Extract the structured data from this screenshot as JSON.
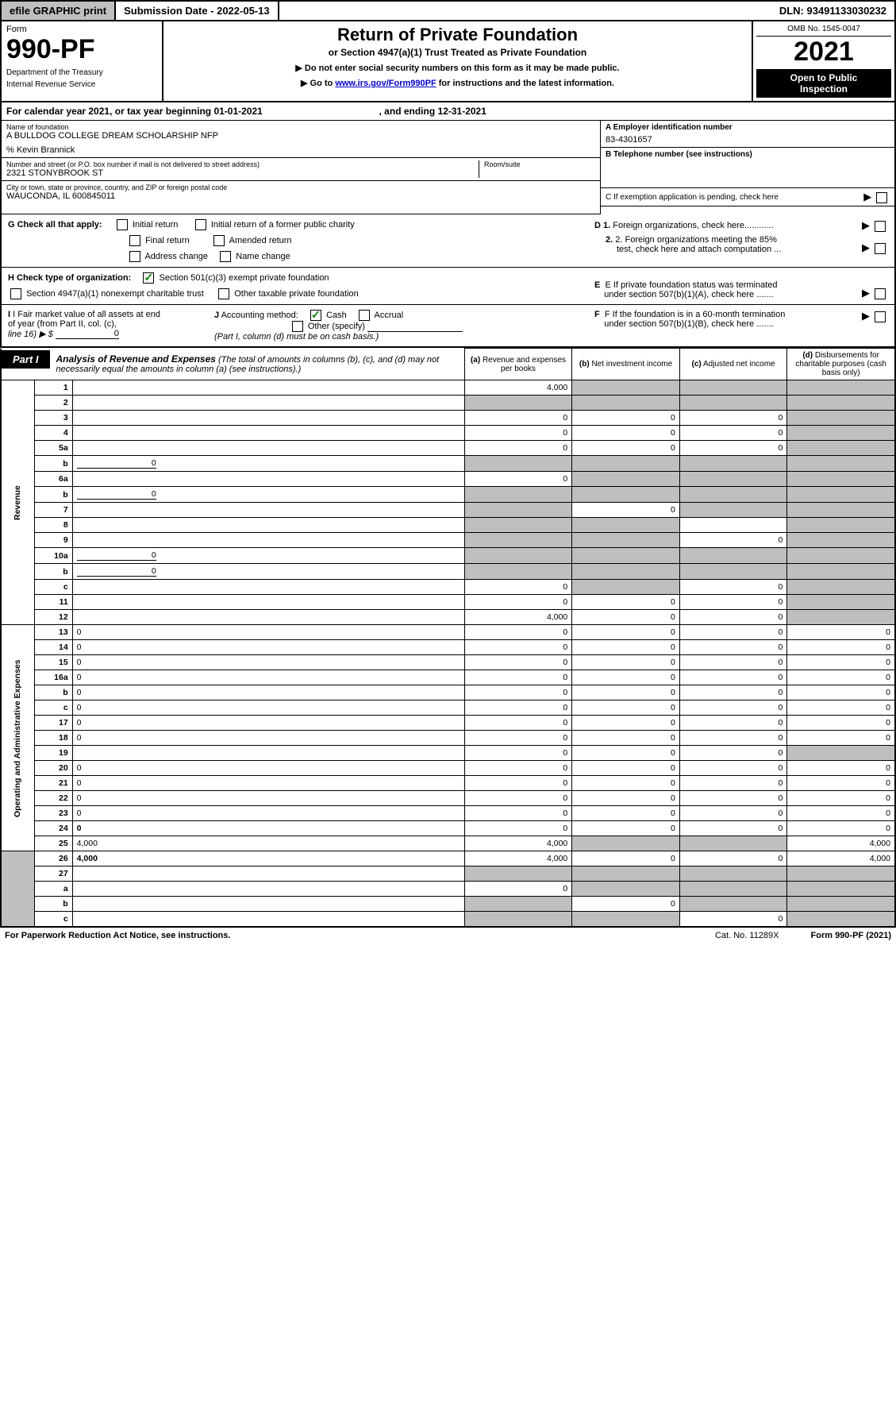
{
  "topbar": {
    "efile": "efile GRAPHIC print",
    "submission_label": "Submission Date - 2022-05-13",
    "dln": "DLN: 93491133030232"
  },
  "header": {
    "form_word": "Form",
    "form_num": "990-PF",
    "dept1": "Department of the Treasury",
    "dept2": "Internal Revenue Service",
    "title": "Return of Private Foundation",
    "subtitle": "or Section 4947(a)(1) Trust Treated as Private Foundation",
    "note1": "▶ Do not enter social security numbers on this form as it may be made public.",
    "note2_pre": "▶ Go to ",
    "note2_link": "www.irs.gov/Form990PF",
    "note2_post": " for instructions and the latest information.",
    "omb": "OMB No. 1545-0047",
    "year": "2021",
    "open1": "Open to Public",
    "open2": "Inspection"
  },
  "cal_year": {
    "pre": "For calendar year 2021, or tax year beginning 01-01-2021",
    "mid": ", and ending 12-31-2021"
  },
  "info": {
    "name_label": "Name of foundation",
    "name": "A BULLDOG COLLEGE DREAM SCHOLARSHIP NFP",
    "care_of": "% Kevin Brannick",
    "addr_label": "Number and street (or P.O. box number if mail is not delivered to street address)",
    "addr": "2321 STONYBROOK ST",
    "room_label": "Room/suite",
    "city_label": "City or town, state or province, country, and ZIP or foreign postal code",
    "city": "WAUCONDA, IL  600845011",
    "ein_label": "A Employer identification number",
    "ein": "83-4301657",
    "tel_label": "B Telephone number (see instructions)",
    "c_label": "C If exemption application is pending, check here",
    "d1": "D 1. Foreign organizations, check here............",
    "d2a": "2. Foreign organizations meeting the 85%",
    "d2b": "test, check here and attach computation ...",
    "e1": "E  If private foundation status was terminated",
    "e2": "under section 507(b)(1)(A), check here .......",
    "f1": "F  If the foundation is in a 60-month termination",
    "f2": "under section 507(b)(1)(B), check here .......",
    "g_label": "G Check all that apply:",
    "g_initial": "Initial return",
    "g_initial_former": "Initial return of a former public charity",
    "g_final": "Final return",
    "g_amended": "Amended return",
    "g_address": "Address change",
    "g_name": "Name change",
    "h_label": "H Check type of organization:",
    "h_501": "Section 501(c)(3) exempt private foundation",
    "h_4947": "Section 4947(a)(1) nonexempt charitable trust",
    "h_other": "Other taxable private foundation",
    "i_label1": "I Fair market value of all assets at end",
    "i_label2": "of year (from Part II, col. (c),",
    "i_label3": "line 16) ▶ $",
    "i_val": "0",
    "j_label": "J Accounting method:",
    "j_cash": "Cash",
    "j_accrual": "Accrual",
    "j_other": "Other (specify)",
    "j_note": "(Part I, column (d) must be on cash basis.)"
  },
  "part1": {
    "tab": "Part I",
    "title": "Analysis of Revenue and Expenses",
    "title_note": " (The total of amounts in columns (b), (c), and (d) may not necessarily equal the amounts in column (a) (see instructions).)",
    "col_a1": "(a)",
    "col_a2": "Revenue and expenses per books",
    "col_b1": "(b)",
    "col_b2": "Net investment income",
    "col_c1": "(c)",
    "col_c2": "Adjusted net income",
    "col_d1": "(d)",
    "col_d2": "Disbursements for charitable purposes (cash basis only)"
  },
  "sides": {
    "revenue": "Revenue",
    "expenses": "Operating and Administrative Expenses"
  },
  "rows": [
    {
      "n": "1",
      "d": "",
      "a": "4,000",
      "b": "",
      "c": "",
      "bs": true,
      "cs": true,
      "ds": true
    },
    {
      "n": "2",
      "d": "",
      "a": "",
      "b": "",
      "c": "",
      "as": true,
      "bs": true,
      "cs": true,
      "ds": true
    },
    {
      "n": "3",
      "d": "",
      "a": "0",
      "b": "0",
      "c": "0",
      "ds": true
    },
    {
      "n": "4",
      "d": "",
      "a": "0",
      "b": "0",
      "c": "0",
      "ds": true
    },
    {
      "n": "5a",
      "d": "",
      "a": "0",
      "b": "0",
      "c": "0",
      "ds": true
    },
    {
      "n": "b",
      "d": "",
      "a": "",
      "b": "",
      "c": "",
      "as": true,
      "bs": true,
      "cs": true,
      "ds": true,
      "inline": "0"
    },
    {
      "n": "6a",
      "d": "",
      "a": "0",
      "b": "",
      "c": "",
      "bs": true,
      "cs": true,
      "ds": true
    },
    {
      "n": "b",
      "d": "",
      "a": "",
      "b": "",
      "c": "",
      "as": true,
      "bs": true,
      "cs": true,
      "ds": true,
      "inline": "0"
    },
    {
      "n": "7",
      "d": "",
      "a": "",
      "b": "0",
      "c": "",
      "as": true,
      "cs": true,
      "ds": true
    },
    {
      "n": "8",
      "d": "",
      "a": "",
      "b": "",
      "c": "",
      "as": true,
      "bs": true,
      "ds": true
    },
    {
      "n": "9",
      "d": "",
      "a": "",
      "b": "",
      "c": "0",
      "as": true,
      "bs": true,
      "ds": true
    },
    {
      "n": "10a",
      "d": "",
      "a": "",
      "b": "",
      "c": "",
      "as": true,
      "bs": true,
      "cs": true,
      "ds": true,
      "inline": "0",
      "inlineBox": true
    },
    {
      "n": "b",
      "d": "",
      "a": "",
      "b": "",
      "c": "",
      "as": true,
      "bs": true,
      "cs": true,
      "ds": true,
      "inline": "0",
      "inlineBox": true
    },
    {
      "n": "c",
      "d": "",
      "a": "0",
      "b": "",
      "c": "0",
      "bs": true,
      "ds": true
    },
    {
      "n": "11",
      "d": "",
      "a": "0",
      "b": "0",
      "c": "0",
      "ds": true
    },
    {
      "n": "12",
      "d": "",
      "a": "4,000",
      "b": "0",
      "c": "0",
      "bold": true,
      "ds": true
    },
    {
      "n": "13",
      "d": "0",
      "a": "0",
      "b": "0",
      "c": "0"
    },
    {
      "n": "14",
      "d": "0",
      "a": "0",
      "b": "0",
      "c": "0"
    },
    {
      "n": "15",
      "d": "0",
      "a": "0",
      "b": "0",
      "c": "0"
    },
    {
      "n": "16a",
      "d": "0",
      "a": "0",
      "b": "0",
      "c": "0"
    },
    {
      "n": "b",
      "d": "0",
      "a": "0",
      "b": "0",
      "c": "0"
    },
    {
      "n": "c",
      "d": "0",
      "a": "0",
      "b": "0",
      "c": "0"
    },
    {
      "n": "17",
      "d": "0",
      "a": "0",
      "b": "0",
      "c": "0"
    },
    {
      "n": "18",
      "d": "0",
      "a": "0",
      "b": "0",
      "c": "0"
    },
    {
      "n": "19",
      "d": "",
      "a": "0",
      "b": "0",
      "c": "0",
      "ds": true
    },
    {
      "n": "20",
      "d": "0",
      "a": "0",
      "b": "0",
      "c": "0"
    },
    {
      "n": "21",
      "d": "0",
      "a": "0",
      "b": "0",
      "c": "0"
    },
    {
      "n": "22",
      "d": "0",
      "a": "0",
      "b": "0",
      "c": "0"
    },
    {
      "n": "23",
      "d": "0",
      "a": "0",
      "b": "0",
      "c": "0"
    },
    {
      "n": "24",
      "d": "0",
      "a": "0",
      "b": "0",
      "c": "0",
      "bold": true
    },
    {
      "n": "25",
      "d": "4,000",
      "a": "4,000",
      "b": "",
      "c": "",
      "bs": true,
      "cs": true
    },
    {
      "n": "26",
      "d": "4,000",
      "a": "4,000",
      "b": "0",
      "c": "0",
      "bold": true
    },
    {
      "n": "27",
      "d": "",
      "a": "",
      "b": "",
      "c": "",
      "as": true,
      "bs": true,
      "cs": true,
      "ds": true
    },
    {
      "n": "a",
      "d": "",
      "a": "0",
      "b": "",
      "c": "",
      "bold": true,
      "bs": true,
      "cs": true,
      "ds": true
    },
    {
      "n": "b",
      "d": "",
      "a": "",
      "b": "0",
      "c": "",
      "bold": true,
      "as": true,
      "cs": true,
      "ds": true
    },
    {
      "n": "c",
      "d": "",
      "a": "",
      "b": "",
      "c": "0",
      "bold": true,
      "as": true,
      "bs": true,
      "ds": true
    }
  ],
  "footer": {
    "left": "For Paperwork Reduction Act Notice, see instructions.",
    "mid": "Cat. No. 11289X",
    "right": "Form 990-PF (2021)"
  },
  "colors": {
    "shade": "#bfbfbf",
    "link": "#0000cc",
    "check": "#008000"
  }
}
